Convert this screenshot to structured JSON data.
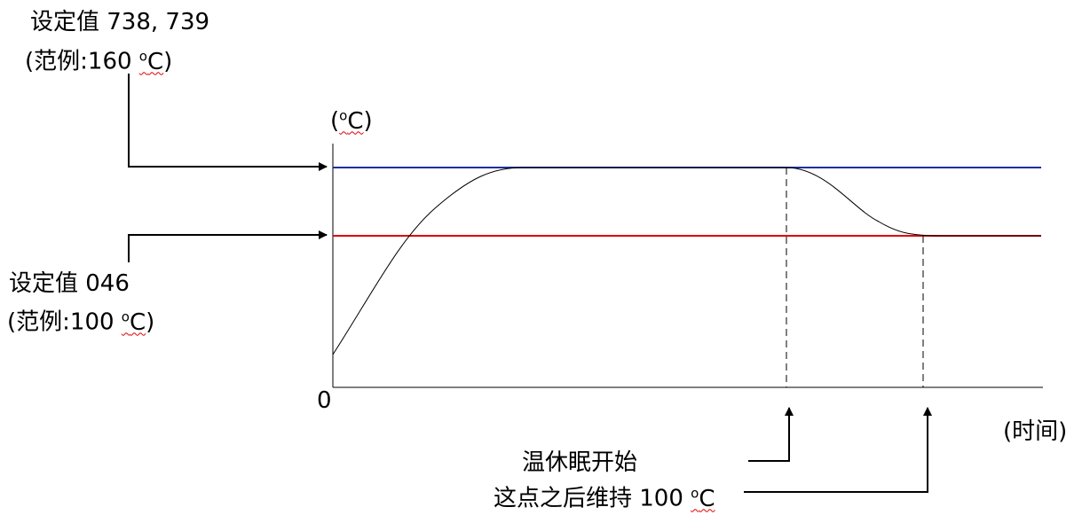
{
  "top_label": {
    "line1": "设定值 738, 739",
    "line2_prefix": "(范例:160 ",
    "line2_unit_sup": "o",
    "line2_unit": "C",
    "line2_suffix": ")"
  },
  "bottom_label": {
    "line1": "设定值 046",
    "line2_prefix": "(范例:100 ",
    "line2_unit_sup": "o",
    "line2_unit": "C",
    "line2_suffix": ")"
  },
  "y_axis_label": {
    "prefix": "(",
    "sup": "o",
    "unit": "C",
    "suffix": ")"
  },
  "origin_label": "0",
  "x_axis_label": "(时间)",
  "annotation_1": "温休眠开始",
  "annotation_2": {
    "prefix": "这点之后维持 100 ",
    "sup": "o",
    "unit": "C"
  },
  "colors": {
    "upper_setpoint_line": "#1f2f9a",
    "lower_setpoint_line": "#e00000",
    "curve": "#000000"
  }
}
